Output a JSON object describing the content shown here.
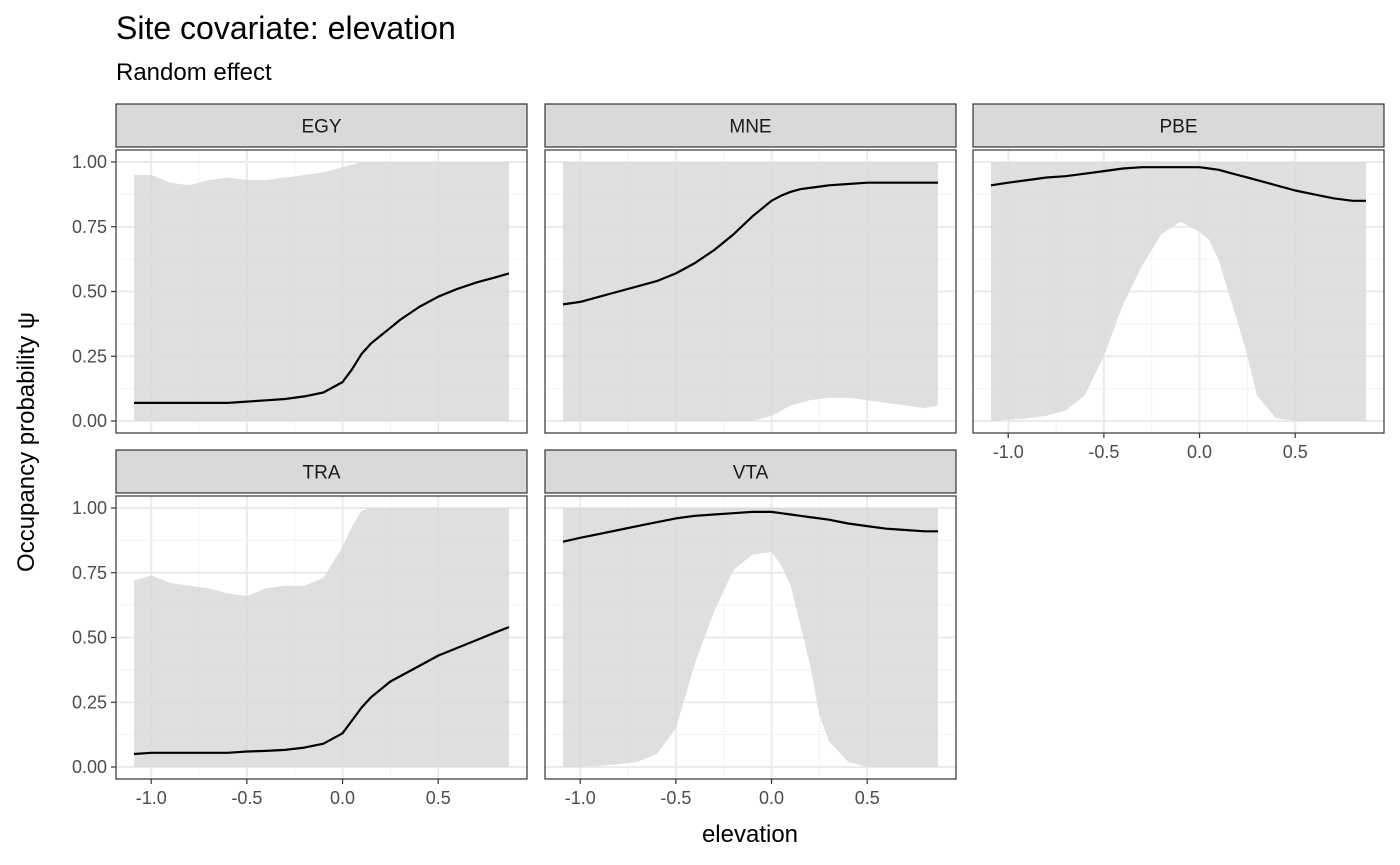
{
  "chart_data": {
    "type": "area",
    "title": "Site covariate: elevation",
    "subtitle": "Random effect",
    "xlabel": "elevation",
    "ylabel": "Occupancy probability  ψ",
    "xlim": [
      -1.09,
      0.87
    ],
    "ylim": [
      0,
      1
    ],
    "x_ticks": [
      "-1.0",
      "-0.5",
      "0.0",
      "0.5"
    ],
    "y_ticks": [
      "0.00",
      "0.25",
      "0.50",
      "0.75",
      "1.00"
    ],
    "grid": true,
    "colors": {
      "ribbon": "#d9d9d9",
      "line": "#000000",
      "strip_fill": "#d9d9d9",
      "grid_major": "#ebebeb",
      "border": "#333333"
    },
    "x": [
      -1.09,
      -1.0,
      -0.9,
      -0.8,
      -0.7,
      -0.6,
      -0.5,
      -0.4,
      -0.3,
      -0.2,
      -0.1,
      0.0,
      0.05,
      0.1,
      0.15,
      0.2,
      0.25,
      0.3,
      0.4,
      0.5,
      0.6,
      0.7,
      0.8,
      0.87
    ],
    "panels": [
      {
        "name": "EGY",
        "mean": [
          0.07,
          0.07,
          0.07,
          0.07,
          0.07,
          0.07,
          0.075,
          0.08,
          0.085,
          0.095,
          0.11,
          0.15,
          0.2,
          0.26,
          0.3,
          0.33,
          0.36,
          0.39,
          0.44,
          0.48,
          0.51,
          0.535,
          0.555,
          0.57
        ],
        "lower": [
          0,
          0,
          0,
          0,
          0,
          0,
          0,
          0,
          0,
          0,
          0,
          0,
          0,
          0,
          0,
          0,
          0,
          0,
          0,
          0,
          0,
          0,
          0,
          0
        ],
        "upper": [
          0.95,
          0.95,
          0.92,
          0.91,
          0.93,
          0.94,
          0.93,
          0.93,
          0.94,
          0.95,
          0.96,
          0.98,
          0.99,
          1.0,
          1.0,
          1.0,
          1.0,
          1.0,
          1.0,
          1.0,
          1.0,
          1.0,
          1.0,
          1.0
        ]
      },
      {
        "name": "MNE",
        "mean": [
          0.45,
          0.46,
          0.48,
          0.5,
          0.52,
          0.54,
          0.57,
          0.61,
          0.66,
          0.72,
          0.79,
          0.85,
          0.87,
          0.885,
          0.895,
          0.9,
          0.905,
          0.91,
          0.915,
          0.92,
          0.92,
          0.92,
          0.92,
          0.92
        ],
        "lower": [
          0,
          0,
          0,
          0,
          0,
          0,
          0,
          0,
          0,
          0,
          0,
          0.02,
          0.04,
          0.06,
          0.07,
          0.08,
          0.085,
          0.09,
          0.09,
          0.08,
          0.07,
          0.06,
          0.05,
          0.06
        ],
        "upper": [
          1.0,
          1.0,
          1.0,
          1.0,
          1.0,
          1.0,
          1.0,
          1.0,
          1.0,
          1.0,
          1.0,
          1.0,
          1.0,
          1.0,
          1.0,
          1.0,
          1.0,
          1.0,
          1.0,
          1.0,
          1.0,
          1.0,
          1.0,
          1.0
        ]
      },
      {
        "name": "PBE",
        "mean": [
          0.91,
          0.92,
          0.93,
          0.94,
          0.945,
          0.955,
          0.965,
          0.975,
          0.98,
          0.98,
          0.98,
          0.98,
          0.975,
          0.97,
          0.96,
          0.95,
          0.94,
          0.93,
          0.91,
          0.89,
          0.875,
          0.86,
          0.85,
          0.85
        ],
        "lower": [
          0,
          0.005,
          0.01,
          0.02,
          0.04,
          0.1,
          0.25,
          0.45,
          0.6,
          0.72,
          0.77,
          0.73,
          0.7,
          0.62,
          0.5,
          0.38,
          0.25,
          0.1,
          0.01,
          0,
          0,
          0,
          0,
          0
        ],
        "upper": [
          1.0,
          1.0,
          1.0,
          1.0,
          1.0,
          1.0,
          1.0,
          1.0,
          1.0,
          1.0,
          1.0,
          1.0,
          1.0,
          1.0,
          1.0,
          1.0,
          1.0,
          1.0,
          1.0,
          1.0,
          1.0,
          1.0,
          1.0,
          1.0
        ]
      },
      {
        "name": "TRA",
        "mean": [
          0.05,
          0.055,
          0.055,
          0.055,
          0.055,
          0.055,
          0.06,
          0.062,
          0.066,
          0.075,
          0.09,
          0.13,
          0.18,
          0.23,
          0.27,
          0.3,
          0.33,
          0.35,
          0.39,
          0.43,
          0.46,
          0.49,
          0.52,
          0.54
        ],
        "lower": [
          0,
          0,
          0,
          0,
          0,
          0,
          0,
          0,
          0,
          0,
          0,
          0,
          0,
          0,
          0,
          0,
          0,
          0,
          0,
          0,
          0,
          0,
          0,
          0
        ],
        "upper": [
          0.72,
          0.74,
          0.71,
          0.7,
          0.69,
          0.67,
          0.66,
          0.69,
          0.7,
          0.7,
          0.73,
          0.85,
          0.93,
          0.99,
          1.0,
          1.0,
          1.0,
          1.0,
          1.0,
          1.0,
          1.0,
          1.0,
          1.0,
          1.0
        ]
      },
      {
        "name": "VTA",
        "mean": [
          0.87,
          0.885,
          0.9,
          0.915,
          0.93,
          0.945,
          0.96,
          0.97,
          0.975,
          0.98,
          0.985,
          0.985,
          0.98,
          0.975,
          0.97,
          0.965,
          0.96,
          0.955,
          0.94,
          0.93,
          0.92,
          0.915,
          0.91,
          0.91
        ],
        "lower": [
          0,
          0,
          0.005,
          0.01,
          0.02,
          0.05,
          0.15,
          0.4,
          0.6,
          0.76,
          0.82,
          0.83,
          0.78,
          0.7,
          0.55,
          0.4,
          0.2,
          0.1,
          0.02,
          0,
          0,
          0,
          0,
          0
        ],
        "upper": [
          1.0,
          1.0,
          1.0,
          1.0,
          1.0,
          1.0,
          1.0,
          1.0,
          1.0,
          1.0,
          1.0,
          1.0,
          1.0,
          1.0,
          1.0,
          1.0,
          1.0,
          1.0,
          1.0,
          1.0,
          1.0,
          1.0,
          1.0,
          1.0
        ]
      }
    ]
  }
}
